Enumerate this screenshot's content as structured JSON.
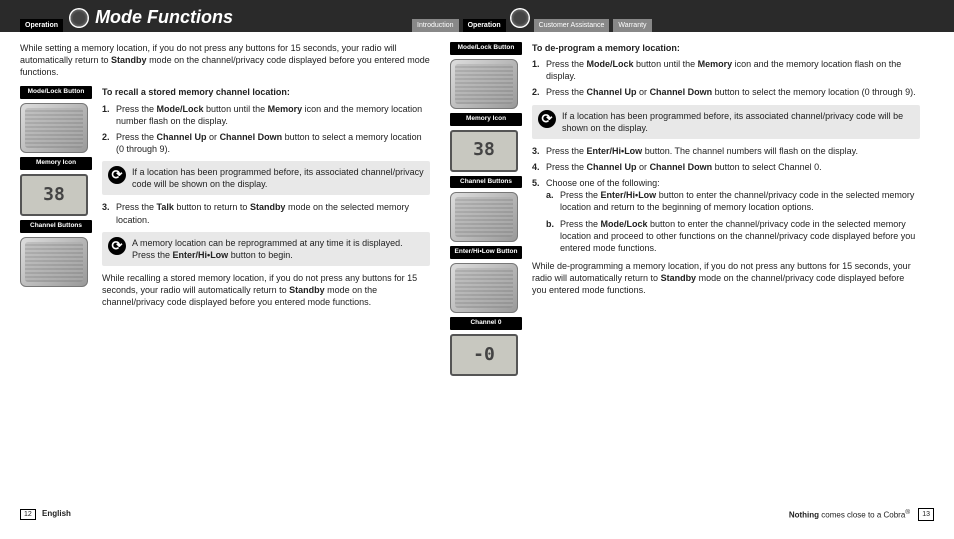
{
  "header": {
    "title": "Mode Functions",
    "left_tab": "Operation",
    "right_tabs": [
      "Introduction",
      "Operation",
      "Customer Assistance",
      "Warranty"
    ]
  },
  "left": {
    "intro": "While setting a memory location, if you do not press any buttons for 15 seconds, your radio will automatically return to Standby mode on the channel/privacy code displayed before you entered mode functions.",
    "labels": [
      "Mode/Lock Button",
      "Memory Icon",
      "Channel Buttons"
    ],
    "subhead": "To recall a stored memory channel location:",
    "s1": "Press the Mode/Lock button until the Memory icon and the memory location number flash on the display.",
    "s2": "Press the Channel Up or Channel Down button to select a memory location (0 through 9).",
    "note1": "If a location has been programmed before, its associated channel/privacy code will be shown on the display.",
    "s3": "Press the Talk button to return to Standby mode on the selected memory location.",
    "note2": "A memory location can be reprogrammed at any time it is displayed. Press the Enter/Hi•Low button to begin.",
    "outro": "While recalling a stored memory location, if you do not press any buttons for 15 seconds, your radio will automatically return to Standby mode on the channel/privacy code displayed before you entered mode functions."
  },
  "right": {
    "labels": [
      "Mode/Lock Button",
      "Memory Icon",
      "Channel Buttons",
      "Enter/Hi•Low Button",
      "Channel 0"
    ],
    "subhead": "To de-program a memory location:",
    "s1": "Press the Mode/Lock button until the Memory icon and the memory location flash on the display.",
    "s2": "Press the Channel Up or Channel Down button to select the memory location (0 through 9).",
    "note1": "If a location has been programmed before, its associated channel/privacy code will be shown on the display.",
    "s3": "Press the Enter/Hi•Low button. The channel numbers will flash on the display.",
    "s4": "Press the Channel Up or Channel Down button to select Channel 0.",
    "s5": "Choose one of the following:",
    "s5a": "Press the Enter/Hi•Low button to enter the channel/privacy code in the selected memory location and return to the beginning of memory location options.",
    "s5b": "Press the Mode/Lock button to enter the channel/privacy code in the selected memory location and proceed to other functions on the channel/privacy code displayed before you entered mode functions.",
    "outro": "While de-programming a memory location, if you do not press any buttons for 15 seconds, your radio will automatically return to Standby mode on the channel/privacy code displayed before you entered mode functions."
  },
  "footer": {
    "left_page": "12",
    "left_lang": "English",
    "right_text_1": "Nothing",
    "right_text_2": " comes close to a Cobra",
    "right_sup": "®",
    "right_page": "13"
  }
}
